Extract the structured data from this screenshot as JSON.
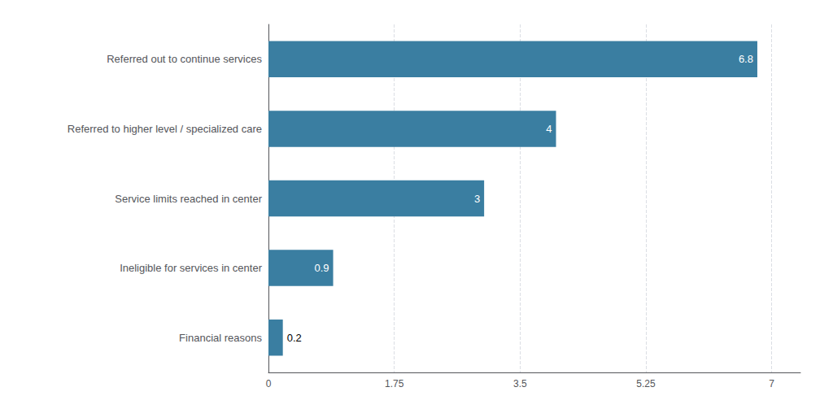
{
  "chart_data": {
    "type": "bar",
    "orientation": "horizontal",
    "categories": [
      "Financial reasons",
      "Ineligible for services in center",
      "Service limits reached in center",
      "Referred to higher level / specialized care",
      "Referred out to continue services"
    ],
    "values": [
      0.2,
      0.9,
      3.0,
      4.0,
      6.8
    ],
    "value_labels": [
      "0.2",
      "0.9",
      "3",
      "4",
      "6.8"
    ],
    "color": "#3a7ea1",
    "xlim": [
      0,
      7.4
    ],
    "xticks": [
      0,
      1.75,
      3.5,
      5.25,
      7
    ],
    "grid": true,
    "data_labels": true
  }
}
